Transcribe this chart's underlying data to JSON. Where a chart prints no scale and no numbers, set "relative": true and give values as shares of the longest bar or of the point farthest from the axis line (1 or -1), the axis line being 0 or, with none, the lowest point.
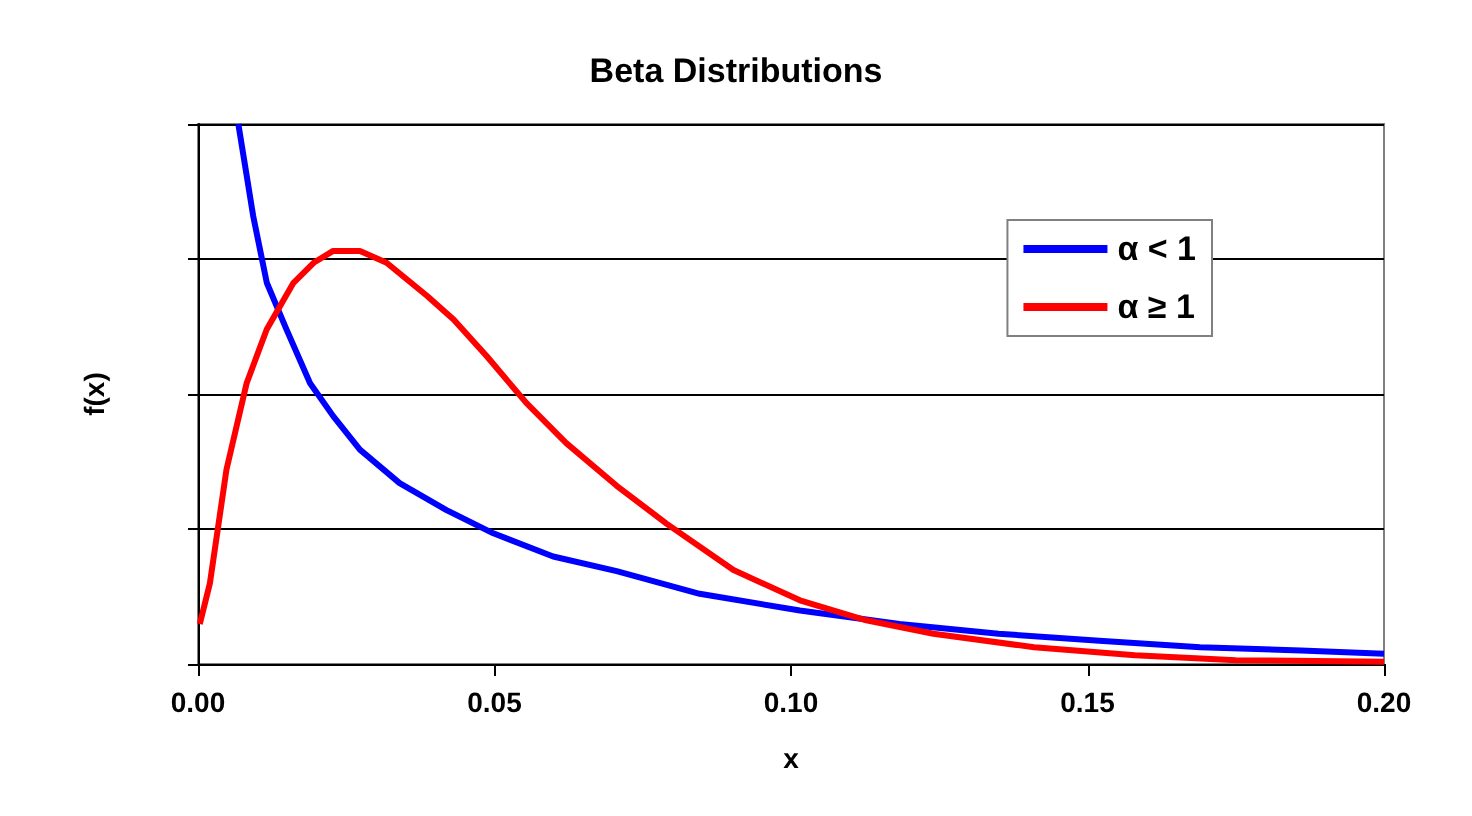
{
  "chart_data": {
    "type": "line",
    "title": "Beta Distributions",
    "xlabel": "x",
    "ylabel": "f(x)",
    "relative": true,
    "xlim": [
      0,
      0.2
    ],
    "xticks": [
      {
        "value": 0,
        "label": "0.00"
      },
      {
        "value": 0.05,
        "label": "0.05"
      },
      {
        "value": 0.1,
        "label": "0.10"
      },
      {
        "value": 0.15,
        "label": "0.15"
      },
      {
        "value": 0.2,
        "label": "0.20"
      }
    ],
    "grid": "y",
    "legend": "top right",
    "marker": "none",
    "line_style": "solid",
    "series": [
      {
        "name": "α < 1",
        "color": "#0000ff",
        "x": [
          0.0068,
          0.0082,
          0.0093,
          0.0116,
          0.0149,
          0.0189,
          0.0228,
          0.0273,
          0.034,
          0.0419,
          0.0498,
          0.0599,
          0.0706,
          0.0846,
          0.1015,
          0.1183,
          0.135,
          0.152,
          0.169,
          0.186,
          0.2
        ],
        "values": [
          1,
          0.905,
          0.83,
          0.706,
          0.62,
          0.52,
          0.459,
          0.397,
          0.335,
          0.285,
          0.242,
          0.199,
          0.172,
          0.13,
          0.099,
          0.074,
          0.056,
          0.043,
          0.031,
          0.025,
          0.019
        ]
      },
      {
        "name": "α ≥ 1",
        "color": "#ff0000",
        "x": [
          0.0003,
          0.002,
          0.0048,
          0.0082,
          0.0116,
          0.0161,
          0.0195,
          0.0228,
          0.0273,
          0.0318,
          0.0386,
          0.0431,
          0.0487,
          0.0554,
          0.0621,
          0.0706,
          0.079,
          0.0903,
          0.1015,
          0.1127,
          0.124,
          0.141,
          0.158,
          0.175,
          0.2
        ],
        "values": [
          0.074,
          0.149,
          0.36,
          0.52,
          0.62,
          0.706,
          0.743,
          0.765,
          0.765,
          0.743,
          0.682,
          0.638,
          0.57,
          0.483,
          0.409,
          0.33,
          0.26,
          0.174,
          0.118,
          0.081,
          0.056,
          0.031,
          0.016,
          0.007,
          0.004
        ]
      }
    ]
  }
}
